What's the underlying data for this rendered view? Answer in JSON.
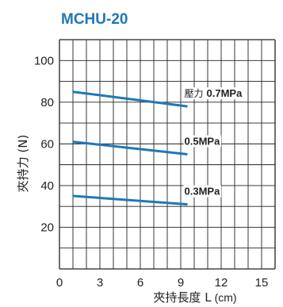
{
  "chart_data": {
    "type": "line",
    "title": "MCHU-20",
    "xlabel": "夾持長度 L",
    "xlabel_unit": "(cm)",
    "ylabel": "夾持力 (N)",
    "xlim": [
      0,
      16
    ],
    "ylim": [
      0,
      110
    ],
    "x_ticks": [
      "0",
      "3",
      "6",
      "9",
      "12",
      "15"
    ],
    "y_ticks": [
      "100",
      "80",
      "60",
      "40",
      "20"
    ],
    "grid": true,
    "series_color": "#1f78b8",
    "title_color": "#1f78b8",
    "series": [
      {
        "name": "0.7MPa",
        "name_prefix": "壓力",
        "x": [
          1,
          9.5
        ],
        "y": [
          85,
          78
        ]
      },
      {
        "name": "0.5MPa",
        "name_prefix": "",
        "x": [
          1,
          9.5
        ],
        "y": [
          61,
          55
        ]
      },
      {
        "name": "0.3MPa",
        "name_prefix": "",
        "x": [
          1,
          9.5
        ],
        "y": [
          35,
          31
        ]
      }
    ]
  }
}
